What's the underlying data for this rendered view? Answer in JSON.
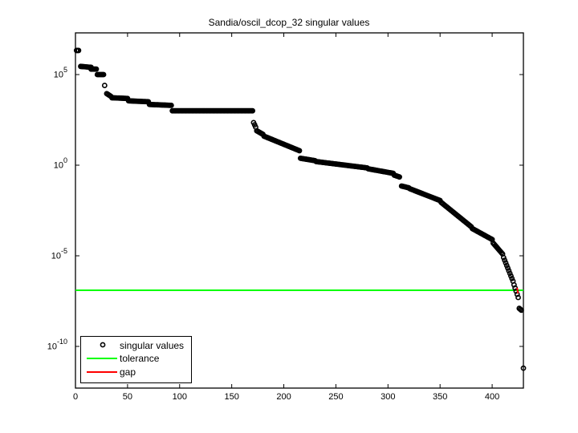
{
  "chart_data": {
    "type": "scatter",
    "title": "Sandia/oscil_dcop_32 singular values",
    "xlabel": "",
    "ylabel": "",
    "yscale": "log",
    "xlim": [
      0,
      430
    ],
    "ylim_log10": [
      -12.3,
      7.3
    ],
    "x_ticks": [
      0,
      50,
      100,
      150,
      200,
      250,
      300,
      350,
      400
    ],
    "y_ticks": [
      {
        "base": "10",
        "exp": "5",
        "log": 5
      },
      {
        "base": "10",
        "exp": "0",
        "log": 0
      },
      {
        "base": "10",
        "exp": "-5",
        "log": -5
      },
      {
        "base": "10",
        "exp": "-10",
        "log": -10
      }
    ],
    "grid": false,
    "legend_position": "lower left",
    "legend": [
      {
        "label": "singular values",
        "marker": "circle",
        "color": "#000000"
      },
      {
        "label": "tolerance",
        "line": true,
        "color": "#00ff00"
      },
      {
        "label": "gap",
        "line": true,
        "color": "#ff0000"
      }
    ],
    "tolerance_log10": -6.9,
    "gap_index": 424,
    "series": [
      {
        "name": "singular values",
        "segments_log10": [
          {
            "from": 1,
            "to": 3,
            "start": 6.33,
            "end": 6.33
          },
          {
            "from": 5,
            "to": 15,
            "start": 5.45,
            "end": 5.4
          },
          {
            "from": 15,
            "to": 20,
            "start": 5.3,
            "end": 5.3
          },
          {
            "from": 21,
            "to": 27,
            "start": 5.0,
            "end": 5.0
          },
          {
            "from": 28,
            "to": 28,
            "start": 4.4,
            "end": 4.4
          },
          {
            "from": 30,
            "to": 34,
            "start": 3.95,
            "end": 3.8
          },
          {
            "from": 35,
            "to": 50,
            "start": 3.72,
            "end": 3.68
          },
          {
            "from": 51,
            "to": 70,
            "start": 3.55,
            "end": 3.5
          },
          {
            "from": 71,
            "to": 92,
            "start": 3.35,
            "end": 3.3
          },
          {
            "from": 93,
            "to": 170,
            "start": 3.0,
            "end": 3.0
          },
          {
            "from": 171,
            "to": 173,
            "start": 2.35,
            "end": 2.1
          },
          {
            "from": 174,
            "to": 180,
            "start": 1.9,
            "end": 1.7
          },
          {
            "from": 181,
            "to": 215,
            "start": 1.6,
            "end": 0.8
          },
          {
            "from": 216,
            "to": 230,
            "start": 0.38,
            "end": 0.25
          },
          {
            "from": 231,
            "to": 280,
            "start": 0.2,
            "end": -0.15
          },
          {
            "from": 281,
            "to": 305,
            "start": -0.2,
            "end": -0.45
          },
          {
            "from": 306,
            "to": 311,
            "start": -0.55,
            "end": -0.65
          },
          {
            "from": 313,
            "to": 320,
            "start": -1.15,
            "end": -1.25
          },
          {
            "from": 321,
            "to": 350,
            "start": -1.3,
            "end": -1.95
          },
          {
            "from": 351,
            "to": 380,
            "start": -2.05,
            "end": -3.4
          },
          {
            "from": 381,
            "to": 400,
            "start": -3.5,
            "end": -4.1
          },
          {
            "from": 401,
            "to": 410,
            "start": -4.3,
            "end": -4.9
          },
          {
            "from": 411,
            "to": 420,
            "start": -5.1,
            "end": -6.4
          },
          {
            "from": 421,
            "to": 425,
            "start": -6.6,
            "end": -7.3
          },
          {
            "from": 426,
            "to": 428,
            "start": -7.9,
            "end": -8.0
          },
          {
            "from": 430,
            "to": 430,
            "start": -11.2,
            "end": -11.2
          }
        ]
      }
    ]
  }
}
